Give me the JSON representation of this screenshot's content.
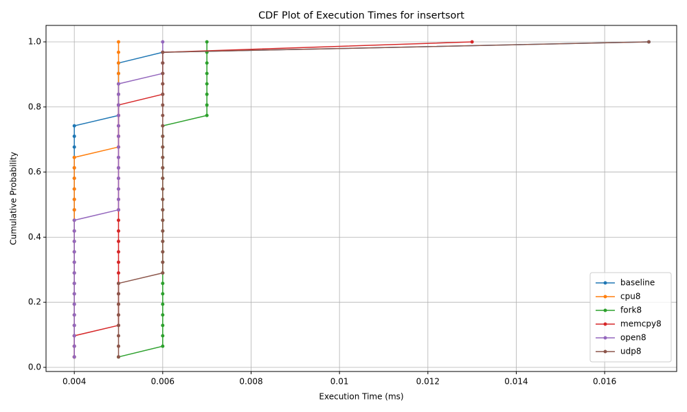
{
  "chart_data": {
    "type": "line",
    "title": "CDF Plot of Execution Times for insertsort",
    "x_label": "Execution Time (ms)",
    "y_label": "Cumulative Probability",
    "xlim": [
      0.00336,
      0.01763
    ],
    "ylim": [
      -0.0127,
      1.0506
    ],
    "xticks": [
      0.004,
      0.006,
      0.008,
      0.01,
      0.012,
      0.014,
      0.016
    ],
    "yticks": [
      {
        "value": 0,
        "label": "0.0"
      },
      0.2,
      0.4,
      0.6,
      0.8,
      {
        "value": 1,
        "label": "1.0"
      }
    ],
    "grid": true,
    "legend": "lower right",
    "series": [
      {
        "name": "baseline",
        "color": "#1f77b4",
        "x": [
          0.004,
          0.004,
          0.004,
          0.004,
          0.004,
          0.004,
          0.004,
          0.004,
          0.004,
          0.004,
          0.004,
          0.004,
          0.004,
          0.004,
          0.004,
          0.004,
          0.004,
          0.004,
          0.004,
          0.004,
          0.004,
          0.004,
          0.004,
          0.005,
          0.005,
          0.005,
          0.005,
          0.005,
          0.005,
          0.006,
          0.017
        ],
        "values": [
          0.032,
          0.065,
          0.097,
          0.129,
          0.161,
          0.194,
          0.226,
          0.258,
          0.29,
          0.323,
          0.355,
          0.387,
          0.419,
          0.452,
          0.484,
          0.516,
          0.548,
          0.581,
          0.613,
          0.645,
          0.677,
          0.71,
          0.742,
          0.774,
          0.806,
          0.839,
          0.871,
          0.903,
          0.935,
          0.968,
          1.0
        ]
      },
      {
        "name": "cpu8",
        "color": "#ff7f0e",
        "x": [
          0.004,
          0.004,
          0.004,
          0.004,
          0.004,
          0.004,
          0.004,
          0.004,
          0.004,
          0.004,
          0.004,
          0.004,
          0.004,
          0.004,
          0.004,
          0.004,
          0.004,
          0.004,
          0.004,
          0.004,
          0.005,
          0.005,
          0.005,
          0.005,
          0.005,
          0.005,
          0.005,
          0.005,
          0.005,
          0.005,
          0.005
        ],
        "values": [
          0.032,
          0.065,
          0.097,
          0.129,
          0.161,
          0.194,
          0.226,
          0.258,
          0.29,
          0.323,
          0.355,
          0.387,
          0.419,
          0.452,
          0.484,
          0.516,
          0.548,
          0.581,
          0.613,
          0.645,
          0.677,
          0.71,
          0.742,
          0.774,
          0.806,
          0.839,
          0.871,
          0.903,
          0.935,
          0.968,
          1.0
        ]
      },
      {
        "name": "fork8",
        "color": "#2ca02c",
        "x": [
          0.005,
          0.006,
          0.006,
          0.006,
          0.006,
          0.006,
          0.006,
          0.006,
          0.006,
          0.006,
          0.006,
          0.006,
          0.006,
          0.006,
          0.006,
          0.006,
          0.006,
          0.006,
          0.006,
          0.006,
          0.006,
          0.006,
          0.006,
          0.007,
          0.007,
          0.007,
          0.007,
          0.007,
          0.007,
          0.007,
          0.007
        ],
        "values": [
          0.032,
          0.065,
          0.097,
          0.129,
          0.161,
          0.194,
          0.226,
          0.258,
          0.29,
          0.323,
          0.355,
          0.387,
          0.419,
          0.452,
          0.484,
          0.516,
          0.548,
          0.581,
          0.613,
          0.645,
          0.677,
          0.71,
          0.742,
          0.774,
          0.806,
          0.839,
          0.871,
          0.903,
          0.935,
          0.968,
          1.0
        ]
      },
      {
        "name": "memcpy8",
        "color": "#d62728",
        "x": [
          0.004,
          0.004,
          0.004,
          0.005,
          0.005,
          0.005,
          0.005,
          0.005,
          0.005,
          0.005,
          0.005,
          0.005,
          0.005,
          0.005,
          0.005,
          0.005,
          0.005,
          0.005,
          0.005,
          0.005,
          0.005,
          0.005,
          0.005,
          0.005,
          0.005,
          0.006,
          0.006,
          0.006,
          0.006,
          0.006,
          0.013
        ],
        "values": [
          0.032,
          0.065,
          0.097,
          0.129,
          0.161,
          0.194,
          0.226,
          0.258,
          0.29,
          0.323,
          0.355,
          0.387,
          0.419,
          0.452,
          0.484,
          0.516,
          0.548,
          0.581,
          0.613,
          0.645,
          0.677,
          0.71,
          0.742,
          0.774,
          0.806,
          0.839,
          0.871,
          0.903,
          0.935,
          0.968,
          1.0
        ]
      },
      {
        "name": "open8",
        "color": "#9467bd",
        "x": [
          0.004,
          0.004,
          0.004,
          0.004,
          0.004,
          0.004,
          0.004,
          0.004,
          0.004,
          0.004,
          0.004,
          0.004,
          0.004,
          0.004,
          0.005,
          0.005,
          0.005,
          0.005,
          0.005,
          0.005,
          0.005,
          0.005,
          0.005,
          0.005,
          0.005,
          0.005,
          0.005,
          0.006,
          0.006,
          0.006,
          0.006
        ],
        "values": [
          0.032,
          0.065,
          0.097,
          0.129,
          0.161,
          0.194,
          0.226,
          0.258,
          0.29,
          0.323,
          0.355,
          0.387,
          0.419,
          0.452,
          0.484,
          0.516,
          0.548,
          0.581,
          0.613,
          0.645,
          0.677,
          0.71,
          0.742,
          0.774,
          0.806,
          0.839,
          0.871,
          0.903,
          0.935,
          0.968,
          1.0
        ]
      },
      {
        "name": "udp8",
        "color": "#8c564b",
        "x": [
          0.005,
          0.005,
          0.005,
          0.005,
          0.005,
          0.005,
          0.005,
          0.005,
          0.006,
          0.006,
          0.006,
          0.006,
          0.006,
          0.006,
          0.006,
          0.006,
          0.006,
          0.006,
          0.006,
          0.006,
          0.006,
          0.006,
          0.006,
          0.006,
          0.006,
          0.006,
          0.006,
          0.006,
          0.006,
          0.006,
          0.017
        ],
        "values": [
          0.032,
          0.065,
          0.097,
          0.129,
          0.161,
          0.194,
          0.226,
          0.258,
          0.29,
          0.323,
          0.355,
          0.387,
          0.419,
          0.452,
          0.484,
          0.516,
          0.548,
          0.581,
          0.613,
          0.645,
          0.677,
          0.71,
          0.742,
          0.774,
          0.806,
          0.839,
          0.871,
          0.903,
          0.935,
          0.968,
          1.0
        ]
      }
    ]
  }
}
